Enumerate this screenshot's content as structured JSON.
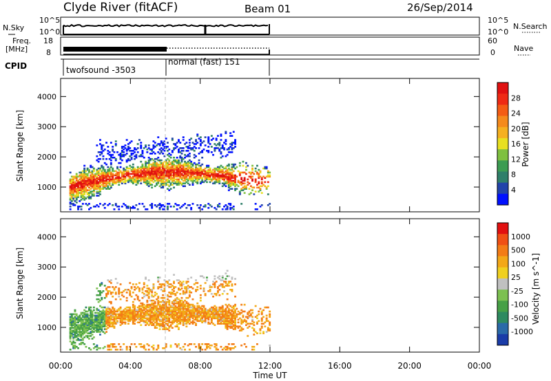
{
  "header": {
    "station": "Clyde River (fitACF)",
    "beam": "Beam 01",
    "date": "26/Sep/2014"
  },
  "panels": {
    "nsky_label": "N.Sky",
    "nsky_top_tick": "10^5",
    "nsky_bottom_tick": "10^0",
    "nsearch_label": "N.Search",
    "freq_label_line1": "Freq.",
    "freq_label_line2": "[MHz]",
    "freq_top_tick": "18",
    "freq_bottom_tick": "8",
    "nave_top_tick": "60",
    "nave_bottom_tick": "0",
    "nave_label": "Nave",
    "cpid_label": "CPID",
    "cpid_segments": [
      "twofsound -3503",
      "normal (fast) 151"
    ]
  },
  "chart_data": [
    {
      "type": "heatmap",
      "name": "power",
      "ylabel": "Slant Range [km]",
      "xlabel": "Time UT",
      "x_ticks": [
        "00:00",
        "04:00",
        "08:00",
        "12:00",
        "16:00",
        "20:00",
        "00:00"
      ],
      "xlim_hours": [
        0,
        24
      ],
      "y_ticks": [
        1000,
        2000,
        3000,
        4000
      ],
      "ylim_km": [
        180,
        4600
      ],
      "data_extent_hours": [
        0.5,
        12.0
      ],
      "colorbar": {
        "label": "Power [dB]",
        "ticks": [
          "4",
          "8",
          "12",
          "16",
          "20",
          "24",
          "28"
        ],
        "colors": [
          "#0010ff",
          "#2244aa",
          "#2f7f6a",
          "#3c9c52",
          "#7fc040",
          "#e8e020",
          "#f5b020",
          "#f58a1c",
          "#f45c14",
          "#ef2a14",
          "#e01010"
        ]
      }
    },
    {
      "type": "heatmap",
      "name": "velocity",
      "ylabel": "Slant Range [km]",
      "xlabel": "Time UT",
      "x_ticks": [
        "00:00",
        "04:00",
        "08:00",
        "12:00",
        "16:00",
        "20:00",
        "00:00"
      ],
      "xlim_hours": [
        0,
        24
      ],
      "y_ticks": [
        1000,
        2000,
        3000,
        4000
      ],
      "ylim_km": [
        180,
        4600
      ],
      "data_extent_hours": [
        0.5,
        12.0
      ],
      "colorbar": {
        "label": "Velocity [m s^-1]",
        "ticks": [
          "1000",
          "500",
          "100",
          "25",
          "-25",
          "-100",
          "-500",
          "-1000"
        ],
        "colors": [
          "#1a3ca8",
          "#2a6aa8",
          "#2e8a60",
          "#46a046",
          "#7cc050",
          "#c0c0c0",
          "#f0d020",
          "#f3a818",
          "#f37c16",
          "#f05014",
          "#e21010"
        ]
      }
    }
  ],
  "footer": {
    "time_label": "Time UT"
  }
}
